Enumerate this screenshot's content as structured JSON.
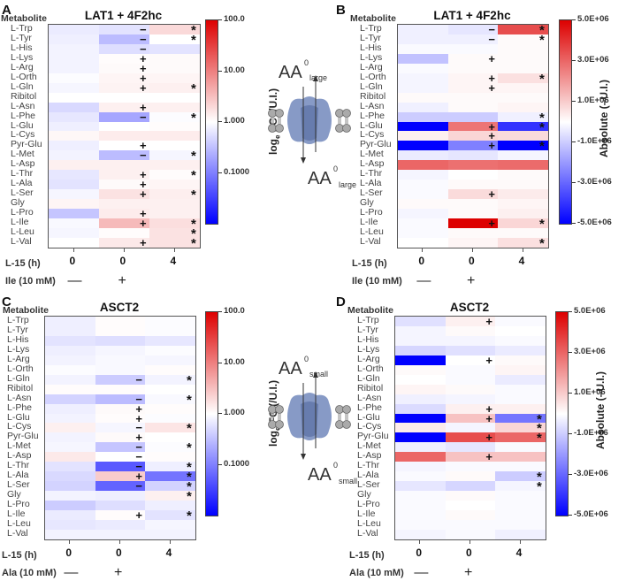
{
  "chart_data": [
    {
      "panel": "A",
      "type": "heatmap",
      "title": "LAT1 + 4F2hc",
      "row_header": "Metabolite",
      "rows": [
        "L-Trp",
        "L-Tyr",
        "L-His",
        "L-Lys",
        "L-Arg",
        "L-Orth",
        "L-Gln",
        "Ribitol",
        "L-Asn",
        "L-Phe",
        "L-Glu",
        "L-Cys",
        "Pyr-Glu",
        "L-Met",
        "L-Asp",
        "L-Thr",
        "L-Ala",
        "L-Ser",
        "Gly",
        "L-Pro",
        "L-Ile",
        "L-Leu",
        "L-Val"
      ],
      "columns": [
        {
          "time_label": "L-15 (h)",
          "time": "0",
          "treatment": "—"
        },
        {
          "time_label": "L-15 (h)",
          "time": "0",
          "treatment": "+"
        },
        {
          "time_label": "L-15 (h)",
          "time": "4",
          "treatment": ""
        }
      ],
      "row_axis_label": "L-15 (h)",
      "treatment_label": "Ile (10 mM)",
      "scale": "log",
      "colorbar": {
        "label": "logₑ FC  (/U.I.)",
        "ticks": [
          "100.0",
          "10.00",
          "1.000",
          "0.1000"
        ],
        "range": [
          0.01,
          100
        ],
        "low_color": "#0000ff",
        "mid_color": "#ffffff",
        "high_color": "#dd0000"
      },
      "values": [
        [
          0.7,
          0.6,
          2.0
        ],
        [
          0.75,
          0.3,
          1.0
        ],
        [
          0.8,
          0.55,
          0.6
        ],
        [
          0.8,
          1.05,
          1.1
        ],
        [
          0.8,
          1.1,
          1.1
        ],
        [
          0.95,
          1.2,
          1.2
        ],
        [
          0.85,
          1.25,
          1.3
        ],
        [
          1.0,
          1.0,
          1.0
        ],
        [
          0.5,
          1.3,
          1.3
        ],
        [
          0.65,
          0.2,
          0.95
        ],
        [
          0.75,
          1.0,
          1.05
        ],
        [
          1.15,
          1.4,
          1.4
        ],
        [
          0.75,
          1.0,
          1.0
        ],
        [
          0.8,
          0.3,
          0.85
        ],
        [
          1.3,
          1.3,
          1.3
        ],
        [
          0.65,
          1.3,
          1.05
        ],
        [
          0.6,
          1.1,
          1.2
        ],
        [
          0.85,
          1.7,
          1.35
        ],
        [
          1.2,
          1.3,
          1.3
        ],
        [
          0.35,
          1.4,
          1.3
        ],
        [
          0.9,
          3.5,
          1.8
        ],
        [
          0.85,
          1.05,
          1.7
        ],
        [
          1.0,
          1.5,
          1.7
        ]
      ],
      "col2_marks": [
        "−",
        "−",
        "−",
        "+",
        "+",
        "+",
        "+",
        "",
        "+",
        "−",
        "",
        "",
        "+",
        "−",
        "",
        "+",
        "+",
        "+",
        "",
        "+",
        "+",
        "",
        "+"
      ],
      "col3_marks": [
        "*",
        "*",
        "",
        "",
        "",
        "",
        "*",
        "",
        "",
        "*",
        "",
        "",
        "",
        "*",
        "",
        "*",
        "",
        "*",
        "",
        "",
        "*",
        "*",
        "*"
      ]
    },
    {
      "panel": "B",
      "type": "heatmap",
      "title": "LAT1 + 4F2hc",
      "row_header": "Metabolite",
      "rows": [
        "L-Trp",
        "L-Tyr",
        "L-His",
        "L-Lys",
        "L-Arg",
        "L-Orth",
        "L-Gln",
        "Ribitol",
        "L-Asn",
        "L-Phe",
        "L-Glu",
        "L-Cys",
        "Pyr-Glu",
        "L-Met",
        "L-Asp",
        "L-Thr",
        "L-Ala",
        "L-Ser",
        "Gly",
        "L-Pro",
        "L-Ile",
        "L-Leu",
        "L-Val"
      ],
      "columns": [
        {
          "time": "0",
          "treatment": "—"
        },
        {
          "time": "0",
          "treatment": "+"
        },
        {
          "time": "4",
          "treatment": ""
        }
      ],
      "row_axis_label": "L-15 (h)",
      "treatment_label": "Ile (10 mM)",
      "scale": "linear",
      "colorbar": {
        "label": "Absolute (–U.I.)",
        "ticks": [
          "5.0E+06",
          "3.0E+06",
          "1.0E+06",
          "-1.0E+06",
          "-3.0E+06",
          "-5.0E+06"
        ],
        "range": [
          -5000000,
          5000000
        ],
        "low_color": "#0000ff",
        "mid_color": "#ffffff",
        "high_color": "#dd0000"
      },
      "values": [
        [
          -300000,
          -500000,
          3500000
        ],
        [
          -300000,
          -300000,
          100000
        ],
        [
          -100000,
          -100000,
          100000
        ],
        [
          -1200000,
          100000,
          100000
        ],
        [
          -100000,
          100000,
          100000
        ],
        [
          -200000,
          200000,
          600000
        ],
        [
          -200000,
          200000,
          200000
        ],
        [
          100000,
          100000,
          100000
        ],
        [
          -300000,
          100000,
          200000
        ],
        [
          -1000000,
          -1000000,
          -300000
        ],
        [
          -5000000,
          2700000,
          -4000000
        ],
        [
          300000,
          800000,
          700000
        ],
        [
          -5000000,
          -2500000,
          -5000000
        ],
        [
          -400000,
          -500000,
          -200000
        ],
        [
          3000000,
          2800000,
          2900000
        ],
        [
          -200000,
          0,
          100000
        ],
        [
          -100000,
          100000,
          100000
        ],
        [
          -100000,
          700000,
          400000
        ],
        [
          100000,
          100000,
          200000
        ],
        [
          -200000,
          100000,
          300000
        ],
        [
          -100000,
          5000000,
          800000
        ],
        [
          -100000,
          100000,
          100000
        ],
        [
          0,
          200000,
          600000
        ]
      ],
      "col2_marks": [
        "−",
        "−",
        "",
        "+",
        "",
        "+",
        "+",
        "",
        "",
        "",
        "+",
        "+",
        "+",
        "",
        "",
        "",
        "",
        "+",
        "",
        "",
        "+",
        "",
        ""
      ],
      "col3_marks": [
        "*",
        "*",
        "",
        "",
        "",
        "*",
        "",
        "",
        "",
        "*",
        "*",
        "",
        "*",
        "",
        "",
        "",
        "",
        "",
        "",
        "",
        "*",
        "",
        "*"
      ]
    },
    {
      "panel": "C",
      "type": "heatmap",
      "title": "ASCT2",
      "row_header": "Metabolite",
      "rows": [
        "L-Trp",
        "L-Tyr",
        "L-His",
        "L-Lys",
        "L-Arg",
        "L-Orth",
        "L-Gln",
        "Ribitol",
        "L-Asn",
        "L-Phe",
        "L-Glu",
        "L-Cys",
        "Pyr-Glu",
        "L-Met",
        "L-Asp",
        "L-Thr",
        "L-Ala",
        "L-Ser",
        "Gly",
        "L-Pro",
        "L-Ile",
        "L-Leu",
        "L-Val"
      ],
      "columns": [
        {
          "time": "0",
          "treatment": "—"
        },
        {
          "time": "0",
          "treatment": "+"
        },
        {
          "time": "4",
          "treatment": ""
        }
      ],
      "row_axis_label": "L-15 (h)",
      "treatment_label": "Ala (10 mM)",
      "scale": "log",
      "colorbar": {
        "label": "logₑ FC  (/U.I.)",
        "ticks": [
          "100.0",
          "10.00",
          "1.000",
          "0.1000"
        ],
        "range": [
          0.01,
          100
        ],
        "low_color": "#0000ff",
        "mid_color": "#ffffff",
        "high_color": "#dd0000"
      },
      "values": [
        [
          0.75,
          1.05,
          0.95
        ],
        [
          0.75,
          1.05,
          0.95
        ],
        [
          0.6,
          0.55,
          0.65
        ],
        [
          0.75,
          0.85,
          0.95
        ],
        [
          0.8,
          0.9,
          0.85
        ],
        [
          0.95,
          0.9,
          1.05
        ],
        [
          0.8,
          0.4,
          0.8
        ],
        [
          1.05,
          1.05,
          1.0
        ],
        [
          0.45,
          0.3,
          0.9
        ],
        [
          0.75,
          1.1,
          1.05
        ],
        [
          0.8,
          1.05,
          0.95
        ],
        [
          1.3,
          0.85,
          1.6
        ],
        [
          0.8,
          1.1,
          1.0
        ],
        [
          0.85,
          0.35,
          0.95
        ],
        [
          1.5,
          1.0,
          1.05
        ],
        [
          0.6,
          0.05,
          0.75
        ],
        [
          0.5,
          2.5,
          0.08
        ],
        [
          0.45,
          0.06,
          0.45
        ],
        [
          0.8,
          0.75,
          1.3
        ],
        [
          0.4,
          0.55,
          0.75
        ],
        [
          0.7,
          1.05,
          0.6
        ],
        [
          0.65,
          0.7,
          0.85
        ],
        [
          0.8,
          0.8,
          0.8
        ]
      ],
      "col2_marks": [
        "",
        "",
        "",
        "",
        "",
        "",
        "−",
        "",
        "−",
        "+",
        "+",
        "−",
        "+",
        "−",
        "−",
        "−",
        "+",
        "−",
        "",
        "",
        "+",
        "",
        ""
      ],
      "col3_marks": [
        "",
        "",
        "",
        "",
        "",
        "",
        "*",
        "",
        "*",
        "",
        "",
        "*",
        "",
        "*",
        "",
        "*",
        "*",
        "*",
        "*",
        "",
        "*",
        "",
        ""
      ]
    },
    {
      "panel": "D",
      "type": "heatmap",
      "title": "ASCT2",
      "row_header": "Metabolite",
      "rows": [
        "L-Trp",
        "L-Tyr",
        "L-His",
        "L-Lys",
        "L-Arg",
        "L-Orth",
        "L-Gln",
        "Ribitol",
        "L-Asn",
        "L-Phe",
        "L-Glu",
        "L-Cys",
        "Pyr-Glu",
        "L-Met",
        "L-Asp",
        "L-Thr",
        "L-Ala",
        "L-Ser",
        "Gly",
        "L-Pro",
        "L-Ile",
        "L-Leu",
        "L-Val"
      ],
      "columns": [
        {
          "time": "0",
          "treatment": "—"
        },
        {
          "time": "0",
          "treatment": "+"
        },
        {
          "time": "4",
          "treatment": ""
        }
      ],
      "row_axis_label": "L-15 (h)",
      "treatment_label": "Ala (10 mM)",
      "scale": "linear",
      "colorbar": {
        "label": "Absolute (–U.I.)",
        "ticks": [
          "5.0E+06",
          "3.0E+06",
          "1.0E+06",
          "-1.0E+06",
          "-3.0E+06",
          "-5.0E+06"
        ],
        "range": [
          -5000000,
          5000000
        ],
        "low_color": "#0000ff",
        "mid_color": "#ffffff",
        "high_color": "#dd0000"
      },
      "values": [
        [
          -600000,
          300000,
          -100000
        ],
        [
          -200000,
          100000,
          0
        ],
        [
          -200000,
          -200000,
          -100000
        ],
        [
          -800000,
          -600000,
          -400000
        ],
        [
          -6000000,
          0,
          100000
        ],
        [
          100000,
          -100000,
          200000
        ],
        [
          0,
          -100000,
          -400000
        ],
        [
          200000,
          100000,
          -100000
        ],
        [
          -300000,
          -200000,
          -100000
        ],
        [
          -700000,
          300000,
          300000
        ],
        [
          -5000000,
          1200000,
          -2700000
        ],
        [
          400000,
          -200000,
          800000
        ],
        [
          -5000000,
          3500000,
          3000000
        ],
        [
          -300000,
          -500000,
          -100000
        ],
        [
          3000000,
          1200000,
          1200000
        ],
        [
          -200000,
          -100000,
          -100000
        ],
        [
          -100000,
          100000,
          -1000000
        ],
        [
          -500000,
          -800000,
          -200000
        ],
        [
          -100000,
          100000,
          -100000
        ],
        [
          -100000,
          0,
          -100000
        ],
        [
          -100000,
          100000,
          -100000
        ],
        [
          -100000,
          -100000,
          -100000
        ],
        [
          -200000,
          -100000,
          -300000
        ]
      ],
      "col2_marks": [
        "+",
        "",
        "",
        "",
        "+",
        "",
        "",
        "",
        "",
        "+",
        "+",
        "",
        "+",
        "",
        "+",
        "",
        "",
        "",
        "",
        "",
        "",
        "",
        ""
      ],
      "col3_marks": [
        "",
        "",
        "",
        "",
        "",
        "",
        "",
        "",
        "",
        "",
        "*",
        "*",
        "*",
        "",
        "",
        "",
        "*",
        "*",
        "",
        "",
        "",
        "",
        ""
      ]
    }
  ],
  "diagrams": [
    {
      "panel": "A/B",
      "label_top": "AA",
      "sup_top": "0",
      "sub_top": "large",
      "label_bottom": "AA",
      "sup_bottom": "0",
      "sub_bottom": "large"
    },
    {
      "panel": "C/D",
      "label_top": "AA",
      "sup_top": "0",
      "sub_top": "small",
      "label_bottom": "AA",
      "sup_bottom": "0",
      "sub_bottom": "small"
    }
  ]
}
